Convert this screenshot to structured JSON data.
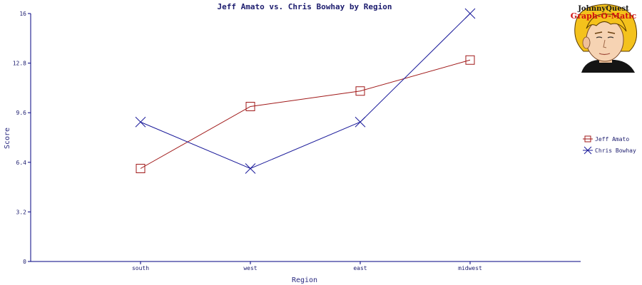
{
  "colors": {
    "axis": "#000080",
    "text": "#1c1c6e",
    "series_jeff": "#a01818",
    "series_chris": "#1a1a9a"
  },
  "logo": {
    "line1": "JohnnyQuest",
    "line2": "Graph-O-Matic",
    "icon": "cartoon-boy-face"
  },
  "chart_data": {
    "type": "line",
    "title": "Jeff Amato vs. Chris Bowhay by Region",
    "xlabel": "Region",
    "ylabel": "Score",
    "categories": [
      "south",
      "west",
      "east",
      "midwest"
    ],
    "ylim": [
      0,
      16
    ],
    "yticks": [
      "0",
      "3.2",
      "6.4",
      "9.6",
      "12.8",
      "16"
    ],
    "grid": false,
    "legend_position": "right",
    "series": [
      {
        "name": "Jeff Amato",
        "marker": "square",
        "values": [
          6.0,
          10.0,
          11.0,
          13.0
        ]
      },
      {
        "name": "Chris Bowhay",
        "marker": "x",
        "values": [
          9.0,
          6.0,
          9.0,
          16.0
        ]
      }
    ]
  }
}
